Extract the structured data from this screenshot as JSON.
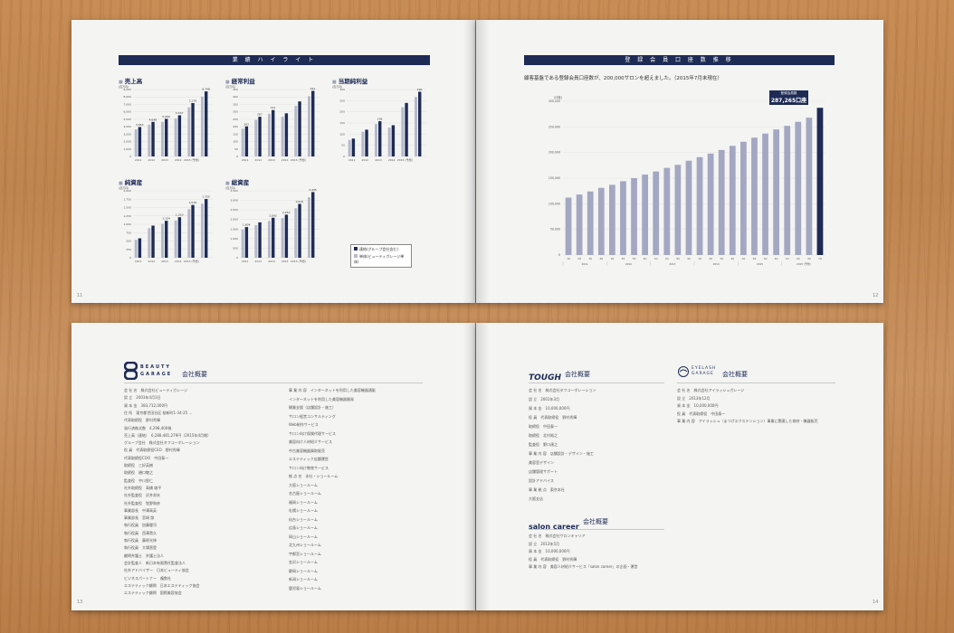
{
  "highlight": {
    "title": "業 績 ハ イ ラ イ ト",
    "page_no": "11",
    "years": [
      "2011",
      "2012",
      "2013",
      "2014",
      "2015 (予想)"
    ],
    "charts": [
      {
        "title": "売上高",
        "unit": "(百万円)",
        "ticks": [
          "9,000",
          "8,000",
          "7,000",
          "6,000",
          "5,000",
          "4,000",
          "3,000",
          "2,000",
          "1,000",
          "0"
        ],
        "labels": [
          "3,953",
          "4,648",
          "5,060",
          "5,537",
          "7,179",
          "8,748"
        ],
        "values": [
          3953,
          4648,
          5060,
          5537,
          7179,
          8748
        ],
        "max": 9000
      },
      {
        "title": "経常利益",
        "unit": "(百万円)",
        "ticks": [
          "450",
          "400",
          "350",
          "300",
          "250",
          "200",
          "150",
          "100",
          "50",
          "0"
        ],
        "labels": [
          "202",
          "267",
          "312",
          "",
          "",
          "441"
        ],
        "values": [
          202,
          267,
          312,
          290,
          370,
          441
        ],
        "max": 450
      },
      {
        "title": "当期純利益",
        "unit": "(百万円)",
        "ticks": [
          "300",
          "250",
          "200",
          "150",
          "100",
          "50",
          "0"
        ],
        "labels": [
          "",
          "",
          "158",
          "",
          "",
          "290"
        ],
        "values": [
          80,
          120,
          158,
          140,
          240,
          290
        ],
        "max": 300
      },
      {
        "title": "純資産",
        "unit": "(百万円)",
        "ticks": [
          "2,000",
          "1,750",
          "1,500",
          "1,250",
          "1,000",
          "750",
          "500",
          "250",
          "0"
        ],
        "labels": [
          "",
          "",
          "1,104",
          "1,210",
          "1,576",
          "1,755"
        ],
        "values": [
          580,
          960,
          1104,
          1210,
          1576,
          1755
        ],
        "max": 2000
      },
      {
        "title": "総資産",
        "unit": "(百万円)",
        "ticks": [
          "3,500",
          "3,000",
          "2,500",
          "2,000",
          "1,500",
          "1,000",
          "500",
          "0"
        ],
        "labels": [
          "1,604",
          "",
          "2,092",
          "2,250",
          "2,815",
          "3,435"
        ],
        "values": [
          1604,
          1850,
          2092,
          2250,
          2815,
          3435
        ],
        "max": 3500
      }
    ],
    "legend": [
      "連結(グループ会社含む)",
      "単体(ビューティガレージ単体)"
    ]
  },
  "chart_data": [
    {
      "type": "bar",
      "title": "登 録 会 員 口 座 数 推 移",
      "subtitle": "顧客基盤である登録会員口座数が、200,000サロンを超えました。（2015年7月末現在）",
      "ylabel": "(口座)",
      "yticks": [
        "300,000",
        "250,000",
        "200,000",
        "150,000",
        "100,000",
        "50,000",
        "0"
      ],
      "ylim": [
        0,
        300000
      ],
      "x": [
        "1Q",
        "2Q",
        "3Q",
        "4Q",
        "1Q",
        "2Q",
        "3Q",
        "4Q",
        "1Q",
        "2Q",
        "3Q",
        "4Q",
        "1Q",
        "2Q",
        "3Q",
        "4Q",
        "1Q",
        "2Q",
        "3Q",
        "4Q",
        "1Q",
        "2Q",
        "3Q",
        "1Q"
      ],
      "values": [
        112000,
        118000,
        124000,
        131000,
        137000,
        144000,
        150000,
        157000,
        163000,
        170000,
        176000,
        184000,
        191000,
        198000,
        205000,
        213000,
        221000,
        229000,
        237000,
        245000,
        252000,
        260000,
        268000,
        287265
      ],
      "years": [
        "2011",
        "2012",
        "2013",
        "2014",
        "2015",
        "2015 (予想)"
      ],
      "callout": {
        "title": "登録会員数",
        "value": "287,265口座"
      },
      "highlight_color": "#1d2b55",
      "bar_color": "#a4a7c2"
    }
  ],
  "account": {
    "page_no": "12"
  },
  "bg": {
    "logo": "BEAUTY GARAGE",
    "heading": "会社概要",
    "page_no": "13",
    "rows_left": [
      "会 社 名　株式会社ビューティガレージ",
      "設 立　2003年4月3日",
      "資 本 金　383,712,000円",
      "住 所　東京都世田谷区 桜新町1-34-25 ...",
      "代表取締役　野村秀輝",
      "発行済株式数　4,298,400株",
      "売上高（連結）　6,288,481,279円（2015年4月期）",
      "グループ会社　株式会社タフコーポレーション",
      "役 員　代表取締役CEO　野村秀輝",
      "代表取締役COO　中田泰一",
      "取締役　三好英樹",
      "取締役　樋口敬之",
      "監査役　中川智仁",
      "社外取締役　高橋 雄平",
      "社外監査役　沢井邦夫",
      "社外監査役　牧野和彦",
      "事業部長　中澤高英",
      "事業部長　宮崎 諒",
      "執行役員　加藤健司",
      "執行役員　西澤貴久",
      "執行役員　藤原光伸",
      "執行役員　大場直登",
      "顧問弁護士　弁護士法人",
      "会計監査人　新日本有限責任監査法人",
      "社外アドバイザー　日本ビューティ協会",
      "ビジネスパートナー　複数社",
      "エステティック顧問　日本エステティック協会",
      "エステティック顧問　国際美容協会"
    ],
    "rows_right": [
      "事 業 内 容　インターネットを利用した美容機器通販",
      "インターネットを利用した美容機器開発",
      "開業支援（店舗設計・施工）",
      "サロン経営コンサルティング",
      "Web制作サービス",
      "サロン向け保険代理サービス",
      "美容向け人材紹介サービス",
      "中古美容機器買取販売",
      "エステティック店舗運営",
      "サロン向け教育サービス",
      "拠 点 名　本社・ショールーム",
      "大阪ショールーム",
      "名古屋ショールーム",
      "福岡ショールーム",
      "札幌ショールーム",
      "仙台ショールーム",
      "広島ショールーム",
      "岡山ショールーム",
      "北九州ショールーム",
      "宇都宮ショールーム",
      "金沢ショールーム",
      "静岡ショールーム",
      "新潟ショールーム",
      "鹿児島ショールーム"
    ]
  },
  "tough": {
    "logo": "TOUGH",
    "heading": "会社概要",
    "rows": [
      "会 社 名　株式会社タフコーポレーション",
      "設 立　2001年3月",
      "資 本 金　10,000,000円",
      "役 員　代表取締役　野村秀輝",
      "取締役　中田泰一",
      "取締役　北村裕之",
      "監査役　野口達之",
      "事 業 内 容　店舗設計・デザイン・施工",
      "美容室デザイン",
      "店舗管理サポート",
      "設計アドバイス",
      "事 業 拠 点　東京本社",
      "大阪支店"
    ]
  },
  "eyelash": {
    "logo": "EYELASH GARAGE",
    "heading": "会社概要",
    "rows": [
      "会 社 名　株式会社アイラッシュガレージ",
      "設 立　2013年12月",
      "資 本 金　10,000,000円",
      "役 員　代表取締役　中田泰一",
      "事 業 内 容　アイラッシュ（まつげエクステンション）事業に関連した商材・機器販売"
    ]
  },
  "salon": {
    "logo": "salon career",
    "heading": "会社概要",
    "page_no": "14",
    "rows": [
      "会 社 名　株式会社サロンキャリア",
      "設 立　2013年5月",
      "資 本 金　10,000,000円",
      "役 員　代表取締役　野村秀輝",
      "事 業 内 容　美容人材紹介サービス「salon career」の企画・運営"
    ]
  }
}
